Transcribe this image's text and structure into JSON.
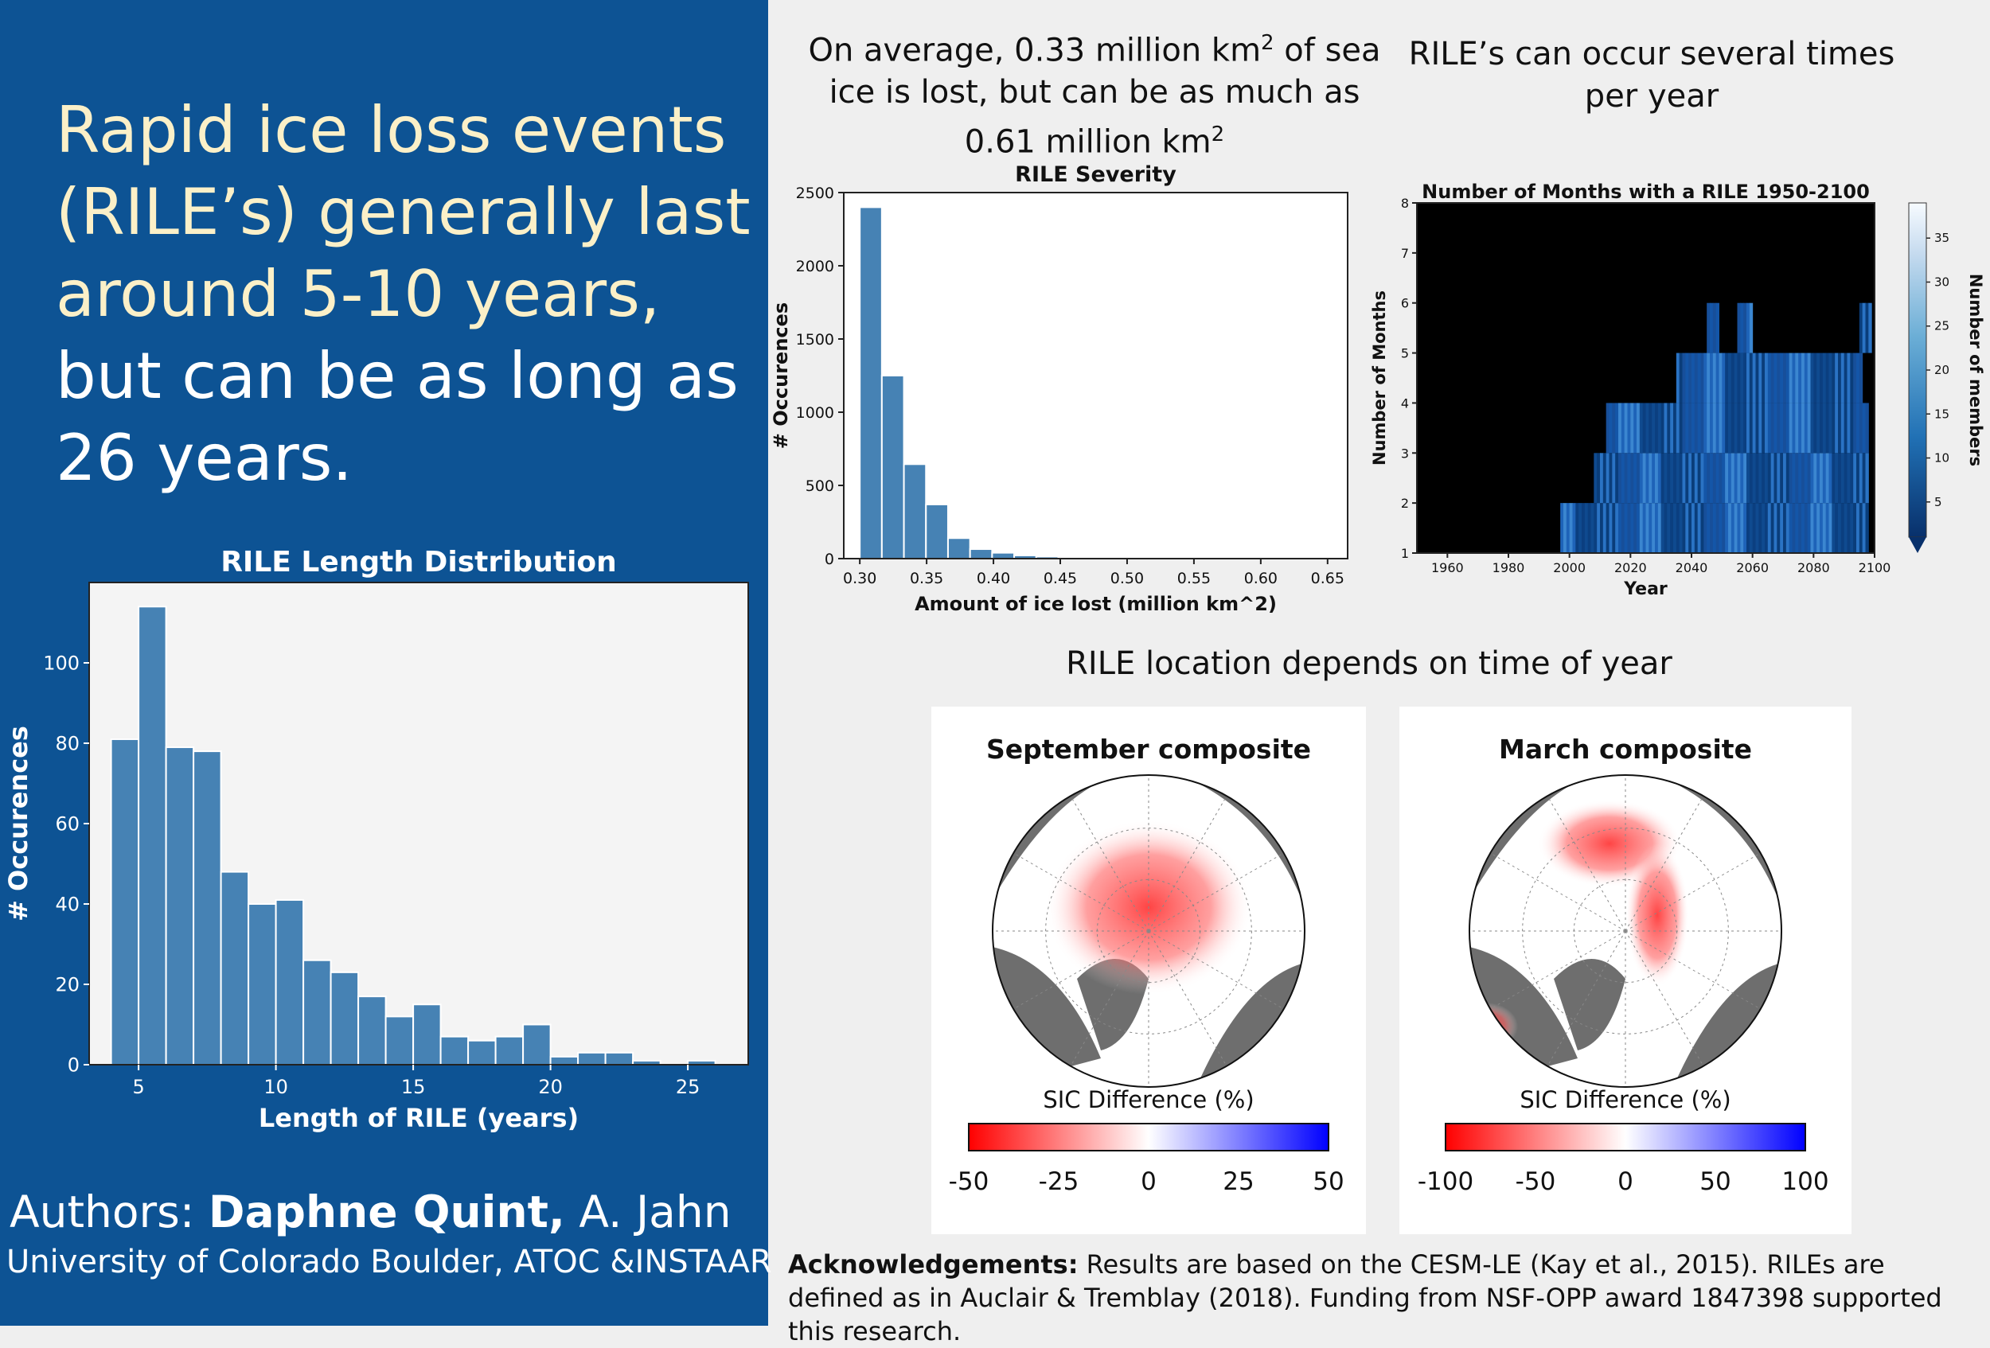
{
  "headline": {
    "part1": "Rapid ice loss events (RILE’s) generally last around 5-10 years,",
    "part2": "but can be as long as 26 years."
  },
  "authors": {
    "prefix": "Authors: ",
    "main": "Daphne Quint,",
    "other": " A. Jahn"
  },
  "affiliation": "University of Colorado Boulder, ATOC &INSTAAR",
  "caption_severity": {
    "text1": "On average, 0.33 million km",
    "sup1": "2",
    "text2": " of sea ice is lost, but can be as much as 0.61 million km",
    "sup2": "2"
  },
  "caption_frequency": "RILE’s can occur several times per year",
  "caption_location": "RILE location depends on time of year",
  "acknowledgements": {
    "label": "Acknowledgements:",
    "text": " Results are based on the CESM-LE (Kay et al., 2015). RILEs are defined as in Auclair & Tremblay (2018). Funding from NSF-OPP award 1847398 supported this research."
  },
  "colors": {
    "panel_blue": "#0d5394",
    "bar_blue": "#4682b4",
    "headline_cream": "#fbf0c8"
  },
  "chart_data": [
    {
      "type": "bar",
      "title": "RILE Length Distribution",
      "xlabel": "Length of RILE (years)",
      "ylabel": "# Occurences",
      "xlim": [
        3.2,
        27.2
      ],
      "ylim": [
        0,
        120
      ],
      "xticks": [
        5,
        10,
        15,
        20,
        25
      ],
      "yticks": [
        0,
        20,
        40,
        60,
        80,
        100
      ],
      "bin_width": 1,
      "x": [
        4,
        5,
        6,
        7,
        8,
        9,
        10,
        11,
        12,
        13,
        14,
        15,
        16,
        17,
        18,
        19,
        20,
        21,
        22,
        23,
        24,
        25,
        26
      ],
      "values": [
        81,
        114,
        79,
        78,
        48,
        40,
        41,
        26,
        23,
        17,
        12,
        15,
        7,
        6,
        7,
        10,
        2,
        3,
        3,
        1,
        0,
        1,
        0
      ]
    },
    {
      "type": "bar",
      "title": "RILE Severity",
      "xlabel": "Amount of ice lost (million km^2)",
      "ylabel": "# Occurences",
      "xlim": [
        0.288,
        0.665
      ],
      "ylim": [
        0,
        2500
      ],
      "xticks": [
        "0.30",
        "0.35",
        "0.40",
        "0.45",
        "0.50",
        "0.55",
        "0.60",
        "0.65"
      ],
      "yticks": [
        0,
        500,
        1000,
        1500,
        2000,
        2500
      ],
      "bin_width": 0.0165,
      "x": [
        0.3,
        0.3165,
        0.333,
        0.3495,
        0.366,
        0.3825,
        0.399,
        0.4155,
        0.432,
        0.4485,
        0.465,
        0.4815,
        0.498,
        0.5145,
        0.531,
        0.5475,
        0.564,
        0.5805,
        0.597
      ],
      "values": [
        2400,
        1250,
        645,
        370,
        140,
        65,
        40,
        22,
        14,
        8,
        5,
        3,
        2,
        1,
        1,
        1,
        0,
        0,
        1
      ]
    },
    {
      "type": "heatmap",
      "title": "Number of Months with a RILE 1950-2100",
      "xlabel": "Year",
      "ylabel": "Number of Months",
      "colorbar_label": "Number of members",
      "xlim": [
        1950,
        2100
      ],
      "ylim": [
        1,
        8
      ],
      "xticks": [
        1960,
        1980,
        2000,
        2020,
        2040,
        2060,
        2080,
        2100
      ],
      "yticks": [
        1,
        2,
        3,
        4,
        5,
        6,
        7,
        8
      ],
      "colorbar_ticks": [
        5,
        10,
        15,
        20,
        25,
        30,
        35
      ],
      "bands": [
        {
          "row": 1,
          "start": 1997,
          "end": 2098
        },
        {
          "row": 2,
          "start": 2008,
          "end": 2098
        },
        {
          "row": 3,
          "start": 2012,
          "end": 2098
        },
        {
          "row": 4,
          "start": 2035,
          "end": 2096
        },
        {
          "row": 5,
          "start": 2045,
          "end": 2049
        },
        {
          "row": 5,
          "start": 2055,
          "end": 2060
        },
        {
          "row": 5,
          "start": 2095,
          "end": 2099
        }
      ]
    }
  ],
  "maps": [
    {
      "title": "September composite",
      "cbar_label": "SIC Difference (%)",
      "ticks": [
        "-50",
        "-25",
        "0",
        "25",
        "50"
      ]
    },
    {
      "title": "March composite",
      "cbar_label": "SIC Difference (%)",
      "ticks": [
        "-100",
        "-50",
        "0",
        "50",
        "100"
      ]
    }
  ]
}
